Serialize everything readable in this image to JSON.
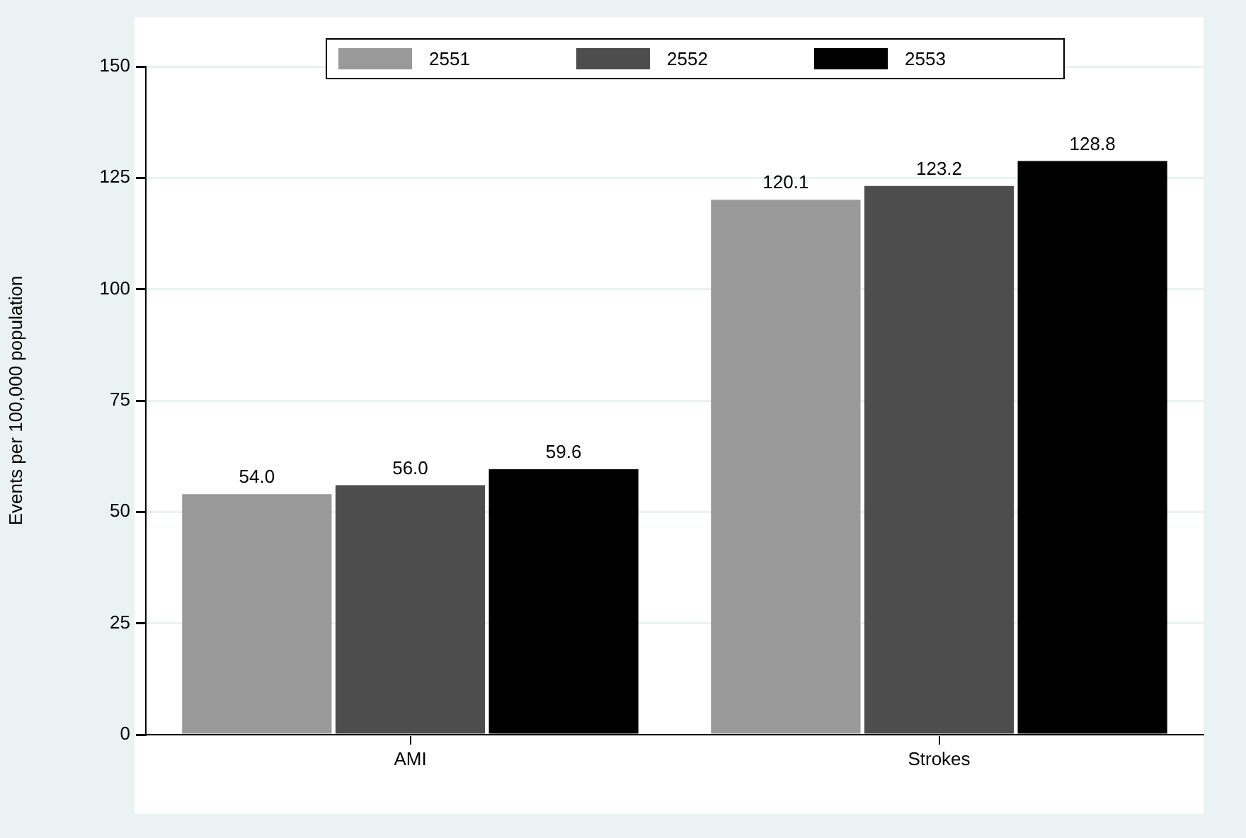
{
  "chart_data": {
    "type": "bar",
    "ylabel": "Events per 100,000 population",
    "categories": [
      "AMI",
      "Strokes"
    ],
    "series": [
      {
        "name": "2551",
        "color": "#999999",
        "values": [
          54.0,
          120.1
        ],
        "value_labels": [
          "54.0",
          "120.1"
        ]
      },
      {
        "name": "2552",
        "color": "#4d4d4d",
        "values": [
          56.0,
          123.2
        ],
        "value_labels": [
          "56.0",
          "123.2"
        ]
      },
      {
        "name": "2553",
        "color": "#000000",
        "values": [
          59.6,
          128.8
        ],
        "value_labels": [
          "59.6",
          "128.8"
        ]
      }
    ],
    "ylim": [
      0,
      150
    ],
    "yticks": [
      0,
      25,
      50,
      75,
      100,
      125,
      150
    ],
    "grid": "y",
    "legend": "top"
  }
}
